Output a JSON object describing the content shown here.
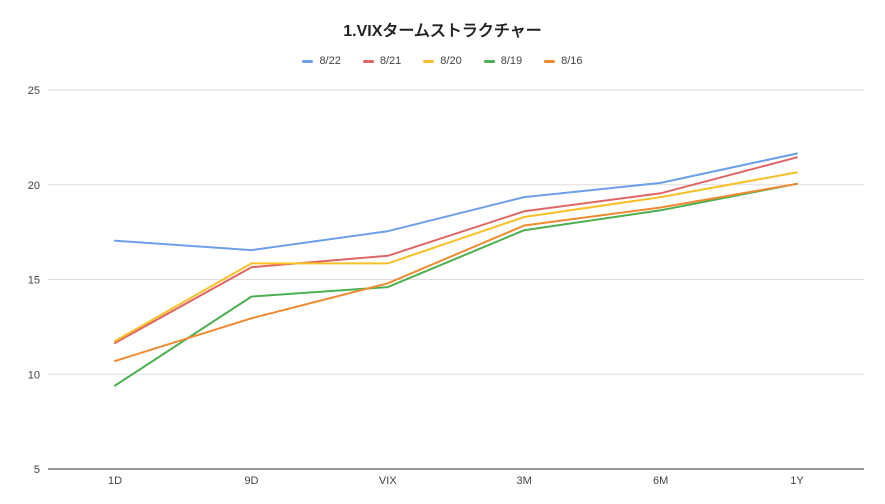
{
  "chart_data": {
    "type": "line",
    "title": "1.VIXタームストラクチャー",
    "categories": [
      "1D",
      "9D",
      "VIX",
      "3M",
      "6M",
      "1Y"
    ],
    "ylim": [
      5,
      25
    ],
    "yticks": [
      5,
      10,
      15,
      20,
      25
    ],
    "grid": true,
    "legend_position": "top",
    "series": [
      {
        "name": "8/22",
        "color": "#6d9eeb",
        "values": [
          17.05,
          16.55,
          17.55,
          19.35,
          20.1,
          21.65
        ]
      },
      {
        "name": "8/21",
        "color": "#e06666",
        "values": [
          11.65,
          15.65,
          16.25,
          18.6,
          19.55,
          21.45
        ]
      },
      {
        "name": "8/20",
        "color": "#f6c026",
        "values": [
          11.75,
          15.85,
          15.85,
          18.3,
          19.35,
          20.65
        ]
      },
      {
        "name": "8/19",
        "color": "#4caf50",
        "values": [
          9.4,
          14.1,
          14.6,
          17.6,
          18.65,
          20.05
        ]
      },
      {
        "name": "8/16",
        "color": "#f08a30",
        "values": [
          10.7,
          12.95,
          14.8,
          17.85,
          18.8,
          20.05
        ]
      }
    ]
  }
}
